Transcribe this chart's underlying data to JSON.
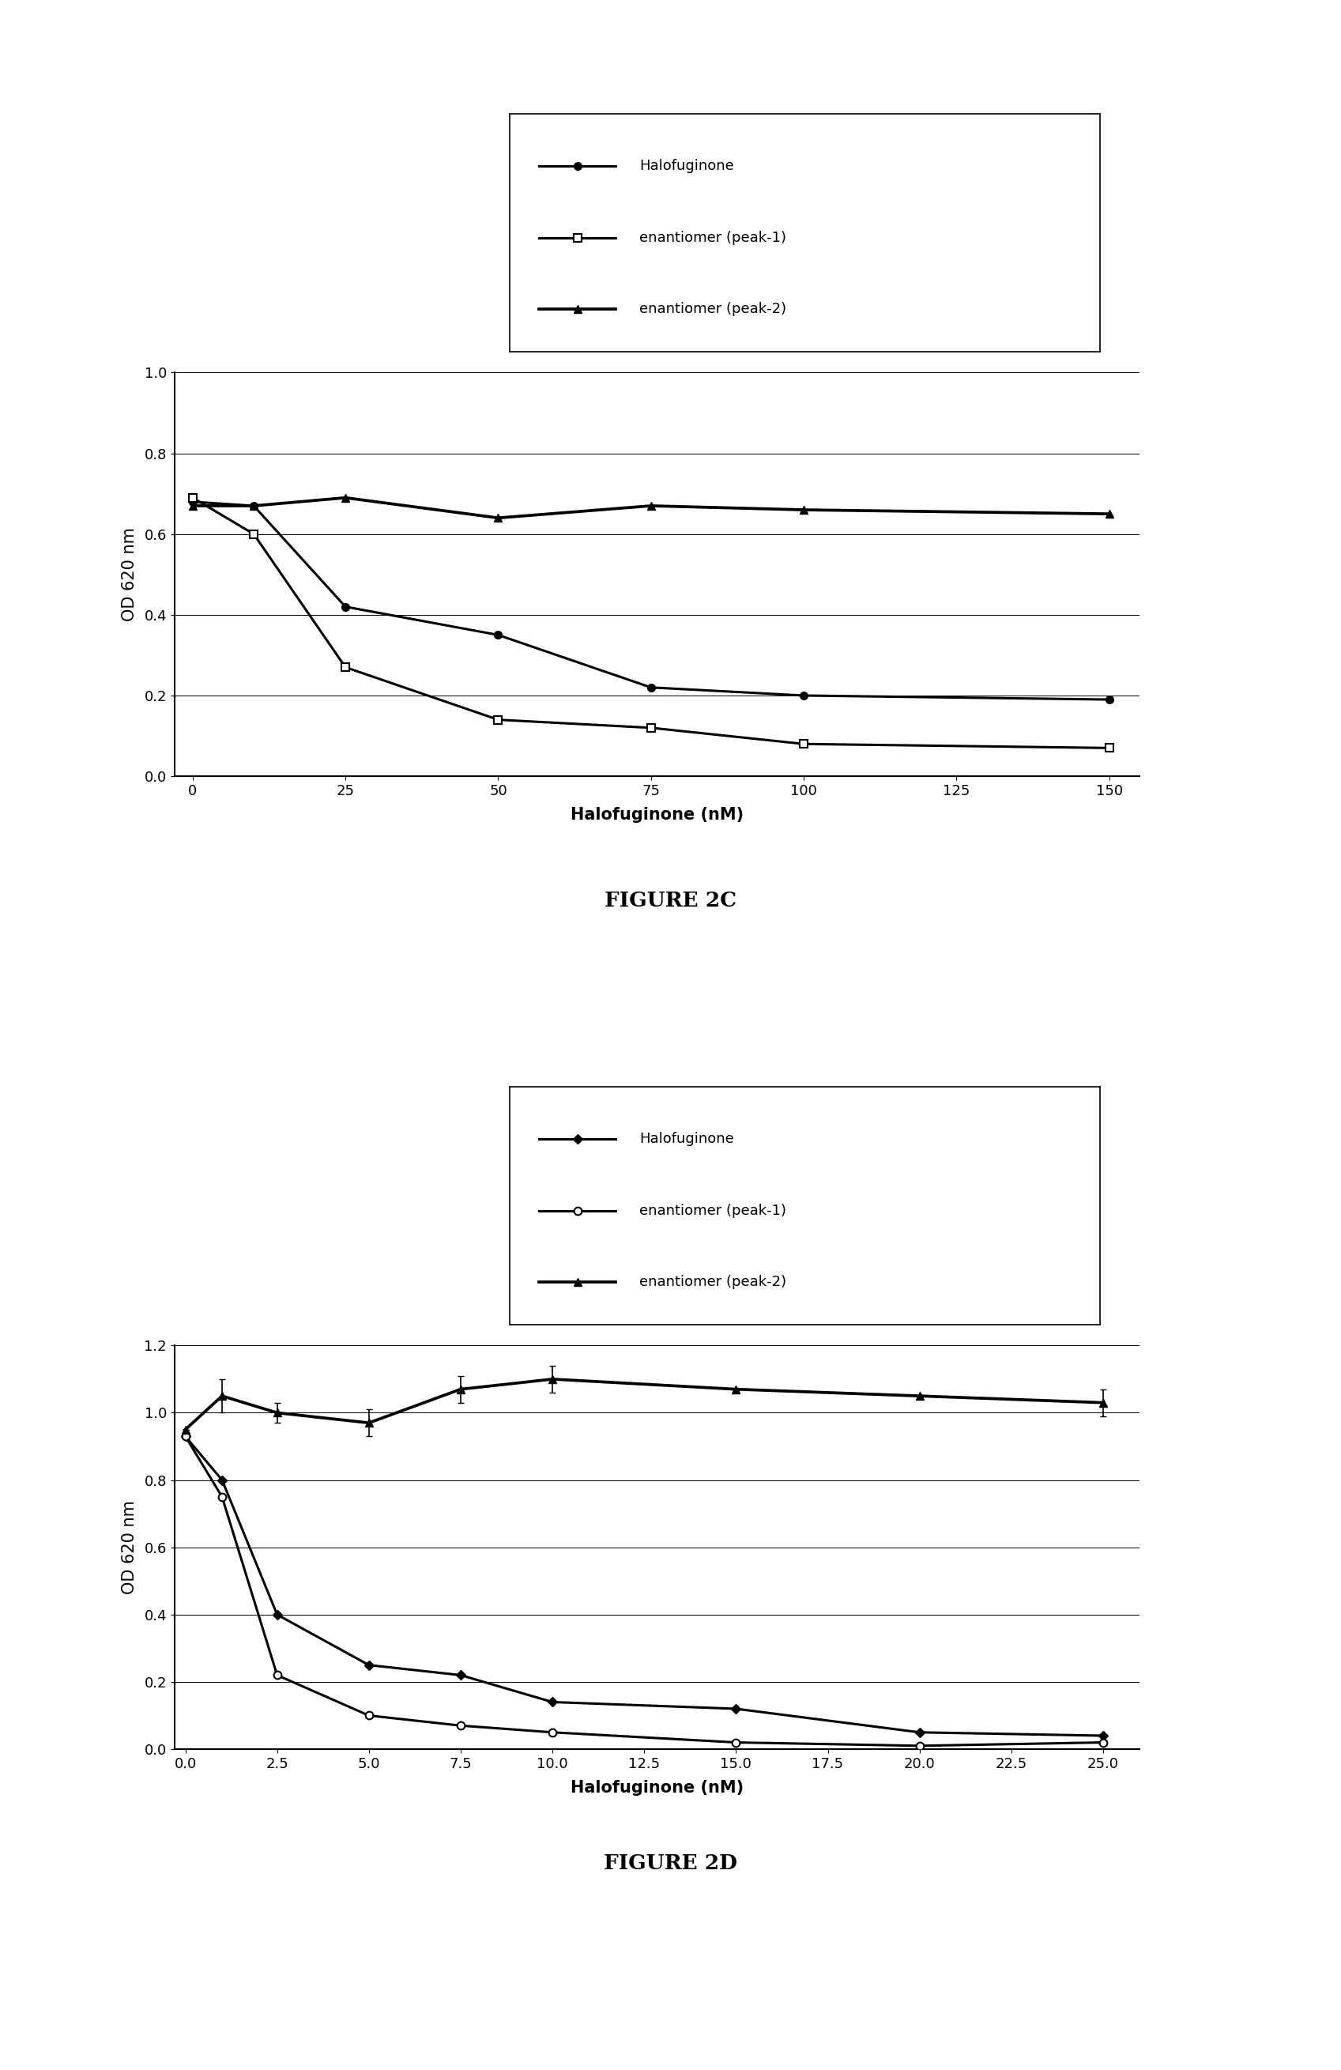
{
  "fig2c": {
    "title": "FIGURE 2C",
    "xlabel": "Halofuginone (nM)",
    "ylabel": "OD 620 nm",
    "xlim": [
      -3,
      155
    ],
    "ylim": [
      0,
      1.0
    ],
    "xticks": [
      0,
      25,
      50,
      75,
      100,
      125,
      150
    ],
    "yticks": [
      0,
      0.2,
      0.4,
      0.6,
      0.8,
      1.0
    ],
    "halofuginone_x": [
      0,
      10,
      25,
      50,
      75,
      100,
      150
    ],
    "halofuginone_y": [
      0.68,
      0.67,
      0.42,
      0.35,
      0.22,
      0.2,
      0.19
    ],
    "peak1_x": [
      0,
      10,
      25,
      50,
      75,
      100,
      150
    ],
    "peak1_y": [
      0.69,
      0.6,
      0.27,
      0.14,
      0.12,
      0.08,
      0.07
    ],
    "peak2_x": [
      0,
      10,
      25,
      50,
      75,
      100,
      150
    ],
    "peak2_y": [
      0.67,
      0.67,
      0.69,
      0.64,
      0.67,
      0.66,
      0.65
    ],
    "legend_halofuginone": "Halofuginone",
    "legend_peak1": "enantiomer (peak-1)",
    "legend_peak2": "enantiomer (peak-2)"
  },
  "fig2d": {
    "title": "FIGURE 2D",
    "xlabel": "Halofuginone (nM)",
    "ylabel": "OD 620 nm",
    "xlim": [
      -0.3,
      26
    ],
    "ylim": [
      0,
      1.2
    ],
    "xticks": [
      0,
      2.5,
      5,
      7.5,
      10,
      12.5,
      15,
      17.5,
      20,
      22.5,
      25
    ],
    "yticks": [
      0,
      0.2,
      0.4,
      0.6,
      0.8,
      1.0,
      1.2
    ],
    "halofuginone_x": [
      0,
      1,
      2.5,
      5,
      7.5,
      10,
      15,
      20,
      25
    ],
    "halofuginone_y": [
      0.93,
      0.8,
      0.4,
      0.25,
      0.22,
      0.14,
      0.12,
      0.05,
      0.04
    ],
    "peak1_x": [
      0,
      1,
      2.5,
      5,
      7.5,
      10,
      15,
      20,
      25
    ],
    "peak1_y": [
      0.93,
      0.75,
      0.22,
      0.1,
      0.07,
      0.05,
      0.02,
      0.01,
      0.02
    ],
    "peak2_x": [
      0,
      1,
      2.5,
      5,
      7.5,
      10,
      15,
      20,
      25
    ],
    "peak2_y": [
      0.95,
      1.05,
      1.0,
      0.97,
      1.07,
      1.1,
      1.07,
      1.05,
      1.03
    ],
    "peak2_err": [
      0.0,
      0.05,
      0.03,
      0.04,
      0.04,
      0.04,
      0.0,
      0.0,
      0.04
    ],
    "legend_halofuginone": "Halofuginone",
    "legend_peak1": "enantiomer (peak-1)",
    "legend_peak2": "enantiomer (peak-2)"
  },
  "bg_color": "#ffffff",
  "line_color": "#000000",
  "linewidth": 2.2,
  "markersize": 7,
  "legend_fontsize": 13,
  "axis_label_fontsize": 15,
  "tick_fontsize": 13,
  "figure_label_fontsize": 19
}
